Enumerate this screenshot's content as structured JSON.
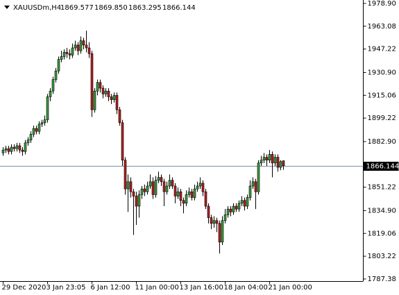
{
  "header": {
    "symbol": "XAUUSDm,H4",
    "quote": [
      "1869.577",
      "1869.850",
      "1863.295",
      "1866.144"
    ]
  },
  "chart_data": {
    "type": "candlestick",
    "up_color": "#3c9a3c",
    "down_color": "#b42020",
    "wick_color": "#000000",
    "ylim": [
      1785.9,
      1981.3
    ],
    "yticks": [
      {
        "value": 1978.9,
        "label": "1978.90"
      },
      1963.08,
      1947.22,
      {
        "value": 1930.9,
        "label": "1930.90"
      },
      1915.06,
      1899.22,
      {
        "value": 1882.9,
        "label": "1882.90"
      },
      1851.22,
      {
        "value": 1834.9,
        "label": "1834.90"
      },
      1819.06,
      1803.22,
      1787.38
    ],
    "price_line": {
      "value": 1866.144,
      "label": "1866.144",
      "color": "#7a90a8"
    },
    "categories": [
      "29 Dec 2020",
      null,
      null,
      null,
      null,
      null,
      null,
      null,
      null,
      null,
      null,
      null,
      null,
      null,
      null,
      null,
      "3 Jan 23:05",
      null,
      null,
      null,
      null,
      null,
      null,
      null,
      null,
      null,
      null,
      null,
      null,
      null,
      null,
      null,
      "6 Jan 12:00",
      null,
      null,
      null,
      null,
      null,
      null,
      null,
      null,
      null,
      null,
      null,
      null,
      null,
      null,
      null,
      "11 Jan 00:00",
      null,
      null,
      null,
      null,
      null,
      null,
      null,
      null,
      null,
      null,
      null,
      null,
      null,
      null,
      null,
      "13 Jan 16:00",
      null,
      null,
      null,
      null,
      null,
      null,
      null,
      null,
      null,
      null,
      null,
      null,
      null,
      null,
      null,
      "18 Jan 04:00",
      null,
      null,
      null,
      null,
      null,
      null,
      null,
      null,
      null,
      null,
      null,
      null,
      null,
      null,
      null,
      "21 Jan 00:00",
      null,
      null,
      null,
      null,
      null
    ],
    "ohlc": [
      [
        1875,
        1879,
        1873,
        1877
      ],
      [
        1877,
        1880,
        1875,
        1878
      ],
      [
        1878,
        1880,
        1874,
        1876
      ],
      [
        1876,
        1881,
        1874,
        1879
      ],
      [
        1879,
        1881,
        1876,
        1878
      ],
      [
        1878,
        1882,
        1876,
        1880
      ],
      [
        1880,
        1882,
        1875,
        1877
      ],
      [
        1877,
        1879,
        1873,
        1876
      ],
      [
        1876,
        1884,
        1874,
        1882
      ],
      [
        1882,
        1886,
        1880,
        1884
      ],
      [
        1884,
        1890,
        1882,
        1888
      ],
      [
        1888,
        1894,
        1886,
        1892
      ],
      [
        1892,
        1894,
        1888,
        1890
      ],
      [
        1890,
        1897,
        1888,
        1895
      ],
      [
        1895,
        1898,
        1893,
        1896
      ],
      [
        1896,
        1901,
        1894,
        1898
      ],
      [
        1898,
        1916,
        1896,
        1914
      ],
      [
        1914,
        1920,
        1911,
        1918
      ],
      [
        1918,
        1928,
        1916,
        1926
      ],
      [
        1926,
        1934,
        1924,
        1932
      ],
      [
        1932,
        1942,
        1930,
        1940
      ],
      [
        1940,
        1946,
        1938,
        1942
      ],
      [
        1942,
        1947,
        1940,
        1945
      ],
      [
        1945,
        1948,
        1941,
        1944
      ],
      [
        1944,
        1947,
        1940,
        1943
      ],
      [
        1943,
        1951,
        1941,
        1948
      ],
      [
        1948,
        1953,
        1946,
        1950
      ],
      [
        1950,
        1952,
        1943,
        1946
      ],
      [
        1946,
        1956,
        1944,
        1953
      ],
      [
        1953,
        1955,
        1947,
        1950
      ],
      [
        1950,
        1960,
        1945,
        1948
      ],
      [
        1948,
        1952,
        1941,
        1944
      ],
      [
        1944,
        1946,
        1900,
        1905
      ],
      [
        1905,
        1920,
        1903,
        1918
      ],
      [
        1918,
        1926,
        1915,
        1924
      ],
      [
        1924,
        1926,
        1917,
        1920
      ],
      [
        1920,
        1922,
        1913,
        1916
      ],
      [
        1916,
        1920,
        1914,
        1918
      ],
      [
        1918,
        1920,
        1911,
        1914
      ],
      [
        1914,
        1916,
        1909,
        1912
      ],
      [
        1912,
        1917,
        1910,
        1915
      ],
      [
        1915,
        1917,
        1902,
        1905
      ],
      [
        1905,
        1907,
        1894,
        1896
      ],
      [
        1896,
        1898,
        1866,
        1870
      ],
      [
        1870,
        1872,
        1846,
        1850
      ],
      [
        1850,
        1860,
        1834,
        1855
      ],
      [
        1855,
        1858,
        1844,
        1848
      ],
      [
        1848,
        1850,
        1818,
        1845
      ],
      [
        1845,
        1848,
        1825,
        1838
      ],
      [
        1838,
        1849,
        1830,
        1846
      ],
      [
        1846,
        1852,
        1843,
        1850
      ],
      [
        1850,
        1853,
        1845,
        1848
      ],
      [
        1848,
        1855,
        1846,
        1852
      ],
      [
        1852,
        1860,
        1850,
        1855
      ],
      [
        1855,
        1858,
        1843,
        1846
      ],
      [
        1846,
        1859,
        1844,
        1856
      ],
      [
        1856,
        1862,
        1854,
        1858
      ],
      [
        1858,
        1860,
        1852,
        1855
      ],
      [
        1855,
        1857,
        1838,
        1848
      ],
      [
        1848,
        1855,
        1846,
        1852
      ],
      [
        1852,
        1860,
        1850,
        1856
      ],
      [
        1856,
        1858,
        1850,
        1852
      ],
      [
        1852,
        1854,
        1840,
        1845
      ],
      [
        1845,
        1851,
        1843,
        1848
      ],
      [
        1848,
        1850,
        1838,
        1842
      ],
      [
        1842,
        1844,
        1833,
        1840
      ],
      [
        1840,
        1849,
        1838,
        1846
      ],
      [
        1846,
        1851,
        1844,
        1848
      ],
      [
        1848,
        1850,
        1842,
        1844
      ],
      [
        1844,
        1853,
        1842,
        1850
      ],
      [
        1850,
        1855,
        1848,
        1852
      ],
      [
        1852,
        1858,
        1850,
        1854
      ],
      [
        1854,
        1856,
        1845,
        1848
      ],
      [
        1848,
        1850,
        1836,
        1838
      ],
      [
        1838,
        1840,
        1826,
        1830
      ],
      [
        1830,
        1832,
        1822,
        1826
      ],
      [
        1826,
        1831,
        1823,
        1828
      ],
      [
        1828,
        1830,
        1820,
        1826
      ],
      [
        1826,
        1828,
        1805,
        1813
      ],
      [
        1813,
        1831,
        1811,
        1828
      ],
      [
        1828,
        1836,
        1826,
        1832
      ],
      [
        1832,
        1838,
        1830,
        1836
      ],
      [
        1836,
        1838,
        1831,
        1834
      ],
      [
        1834,
        1840,
        1832,
        1838
      ],
      [
        1838,
        1840,
        1834,
        1836
      ],
      [
        1836,
        1842,
        1834,
        1840
      ],
      [
        1840,
        1845,
        1838,
        1842
      ],
      [
        1842,
        1844,
        1835,
        1838
      ],
      [
        1838,
        1846,
        1836,
        1844
      ],
      [
        1844,
        1856,
        1842,
        1852
      ],
      [
        1852,
        1858,
        1850,
        1855
      ],
      [
        1855,
        1857,
        1836,
        1848
      ],
      [
        1848,
        1870,
        1846,
        1868
      ],
      [
        1868,
        1873,
        1866,
        1870
      ],
      [
        1870,
        1875,
        1868,
        1872
      ],
      [
        1872,
        1874,
        1866,
        1870
      ],
      [
        1870,
        1877,
        1868,
        1874
      ],
      [
        1874,
        1876,
        1858,
        1868
      ],
      [
        1868,
        1874,
        1866,
        1872
      ],
      [
        1872,
        1874,
        1862,
        1865
      ],
      [
        1865,
        1870,
        1863,
        1869
      ],
      [
        1869.577,
        1869.85,
        1863.295,
        1866.144
      ]
    ]
  }
}
